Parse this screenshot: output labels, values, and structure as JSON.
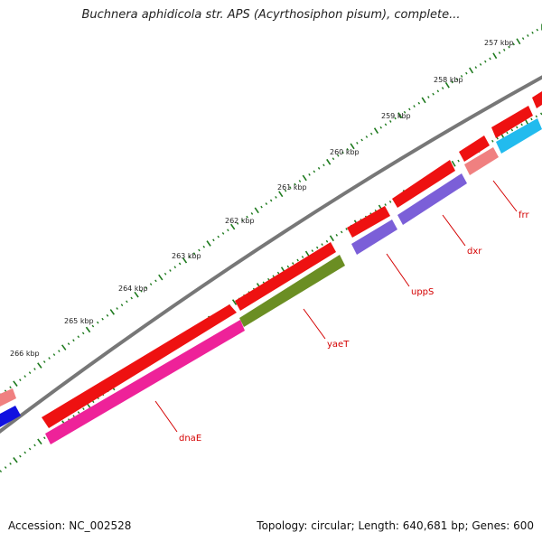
{
  "title": "Buchnera aphidicola str. APS (Acyrthosiphon pisum), complete...",
  "footer": {
    "accession": "Accession: NC_002528",
    "stats": "Topology: circular; Length: 640,681 bp; Genes: 600"
  },
  "colors": {
    "backbone": "#7a7a7a",
    "ticks": "#1e7a1e",
    "label": "#d40000",
    "forward_gene": "#ee1111",
    "rrna": "#f08080",
    "trna": "#1010e0"
  },
  "kbp_labels": [
    "257 kbp",
    "258 kbp",
    "259 kbp",
    "260 kbp",
    "261 kbp",
    "262 kbp",
    "263 kbp",
    "264 kbp",
    "265 kbp",
    "266 kbp"
  ],
  "genes": [
    {
      "name": "frr",
      "color": "#f08080"
    },
    {
      "name": "dxr",
      "color": "#7b5fd8"
    },
    {
      "name": "uppS",
      "color": "#7b5fd8"
    },
    {
      "name": "yaeT",
      "color": "#6b8e23"
    },
    {
      "name": "dnaE",
      "color": "#ee2299"
    }
  ]
}
